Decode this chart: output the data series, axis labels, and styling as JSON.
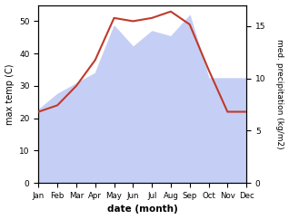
{
  "months": [
    "Jan",
    "Feb",
    "Mar",
    "Apr",
    "May",
    "Jun",
    "Jul",
    "Aug",
    "Sep",
    "Oct",
    "Nov",
    "Dec"
  ],
  "temperature": [
    22,
    24,
    30,
    38,
    51,
    50,
    51,
    53,
    49,
    35,
    22,
    22
  ],
  "precipitation": [
    7,
    8.5,
    9.5,
    10.5,
    15,
    13,
    14.5,
    14,
    16,
    10,
    10,
    10
  ],
  "temp_color": "#c0392b",
  "precip_fill_color": "#c5cff5",
  "temp_ylim": [
    0,
    55
  ],
  "precip_ylim": [
    0,
    17
  ],
  "temp_yticks": [
    0,
    10,
    20,
    30,
    40,
    50
  ],
  "precip_yticks": [
    0,
    5,
    10,
    15
  ],
  "xlabel": "date (month)",
  "ylabel_left": "max temp (C)",
  "ylabel_right": "med. precipitation (kg/m2)",
  "background_color": "#ffffff",
  "figwidth": 3.18,
  "figheight": 2.42,
  "dpi": 100
}
